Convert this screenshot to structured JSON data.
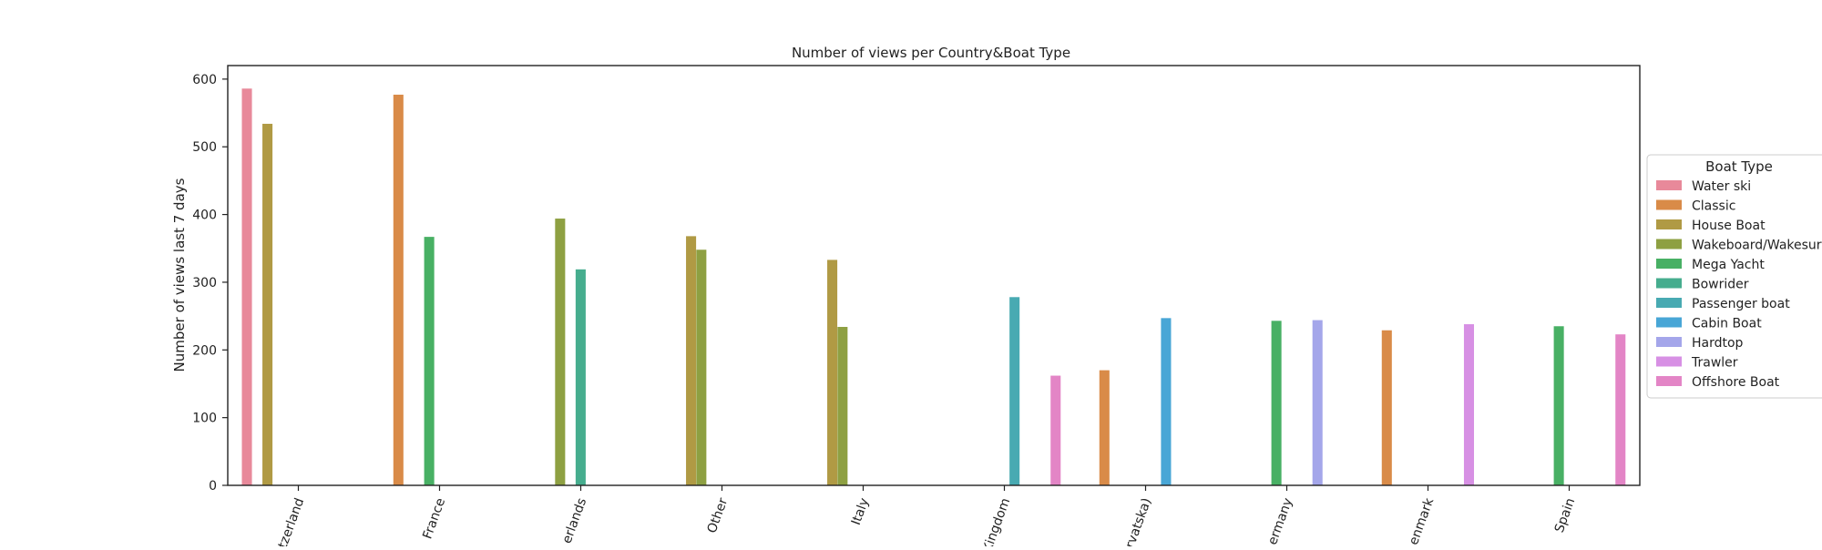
{
  "chart_data": {
    "type": "bar",
    "title": "Number of views per Country&Boat Type",
    "xlabel": "",
    "ylabel": "Number of views last 7 days",
    "ylim": [
      0,
      620
    ],
    "yticks": [
      0,
      100,
      200,
      300,
      400,
      500,
      600
    ],
    "categories": [
      "Switzerland",
      "France",
      "Netherlands",
      "Other",
      "Italy",
      "United Kingdom",
      "Croatia (Hrvatska)",
      "Germany",
      "Denmark",
      "Spain"
    ],
    "tick_labels_visible": [
      "tzerland",
      "France",
      "erlands",
      "Other",
      "Italy",
      "Kingdom",
      "rvatska)",
      "ermany",
      "enmark",
      "Spain"
    ],
    "legend": {
      "title": "Boat Type",
      "placement": "right",
      "entries": [
        "Water ski",
        "Classic",
        "House Boat",
        "Wakeboard/Wakesurf",
        "Mega Yacht",
        "Bowrider",
        "Passenger boat",
        "Cabin Boat",
        "Hardtop",
        "Trawler",
        "Offshore Boat"
      ]
    },
    "colors": [
      "#e8899a",
      "#d98b48",
      "#b09a44",
      "#8ea042",
      "#48b064",
      "#46ad8e",
      "#48aab2",
      "#48a6d6",
      "#a4a6ea",
      "#d790e4",
      "#e385c6"
    ],
    "series": [
      {
        "name": "Water ski",
        "values": [
          586,
          null,
          null,
          null,
          null,
          null,
          null,
          null,
          null,
          null
        ]
      },
      {
        "name": "Classic",
        "values": [
          null,
          577,
          null,
          null,
          null,
          null,
          170,
          null,
          229,
          null
        ]
      },
      {
        "name": "House Boat",
        "values": [
          534,
          null,
          null,
          368,
          333,
          null,
          null,
          null,
          null,
          null
        ]
      },
      {
        "name": "Wakeboard/Wakesurf",
        "values": [
          null,
          null,
          394,
          348,
          234,
          null,
          null,
          null,
          null,
          null
        ]
      },
      {
        "name": "Mega Yacht",
        "values": [
          null,
          367,
          null,
          null,
          null,
          null,
          null,
          243,
          null,
          235
        ]
      },
      {
        "name": "Bowrider",
        "values": [
          null,
          null,
          319,
          null,
          null,
          null,
          null,
          null,
          null,
          null
        ]
      },
      {
        "name": "Passenger boat",
        "values": [
          null,
          null,
          null,
          null,
          null,
          278,
          null,
          null,
          null,
          null
        ]
      },
      {
        "name": "Cabin Boat",
        "values": [
          null,
          null,
          null,
          null,
          null,
          null,
          247,
          null,
          null,
          null
        ]
      },
      {
        "name": "Hardtop",
        "values": [
          null,
          null,
          null,
          null,
          null,
          null,
          null,
          244,
          null,
          null
        ]
      },
      {
        "name": "Trawler",
        "values": [
          null,
          null,
          null,
          null,
          null,
          null,
          null,
          null,
          238,
          null
        ]
      },
      {
        "name": "Offshore Boat",
        "values": [
          null,
          null,
          null,
          null,
          null,
          162,
          null,
          null,
          null,
          223
        ]
      }
    ]
  }
}
